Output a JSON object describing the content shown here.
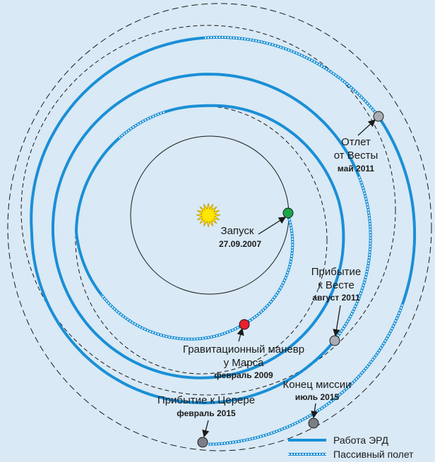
{
  "nodes": [
    {
      "lines": [
        "Запуск"
      ],
      "date": "27.09.2007"
    },
    {
      "lines": [
        "Гравитационный маневр",
        "у Марса"
      ],
      "date": "февраль 2009"
    },
    {
      "lines": [
        "Прибытие",
        "к Весте"
      ],
      "date": "август 2011"
    },
    {
      "lines": [
        "Отлет",
        "от Весты"
      ],
      "date": "май 2011"
    },
    {
      "lines": [
        "Конец миссии"
      ],
      "date": "июль 2015"
    },
    {
      "lines": [
        "Прибытие к Церере"
      ],
      "date": "февраль 2015"
    }
  ],
  "legend": [
    "Работа ЭРД",
    "Пассивный полет"
  ]
}
